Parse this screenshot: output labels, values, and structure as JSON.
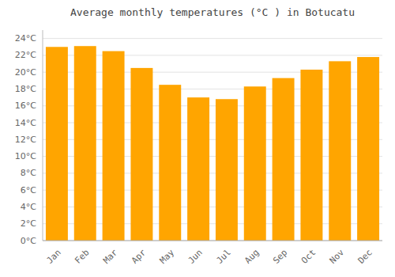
{
  "chart_data": {
    "type": "bar",
    "title": "Average monthly temperatures (°C ) in Botucatu",
    "categories": [
      "Jan",
      "Feb",
      "Mar",
      "Apr",
      "May",
      "Jun",
      "Jul",
      "Aug",
      "Sep",
      "Oct",
      "Nov",
      "Dec"
    ],
    "values": [
      23.0,
      23.1,
      22.5,
      20.5,
      18.5,
      17.0,
      16.8,
      18.3,
      19.3,
      20.3,
      21.3,
      21.8
    ],
    "color": "#FFA500",
    "ylim": [
      0,
      25
    ],
    "yticks": [
      {
        "value": 0,
        "label": "0°C"
      },
      {
        "value": 2,
        "label": "2°C"
      },
      {
        "value": 4,
        "label": "4°C"
      },
      {
        "value": 6,
        "label": "6°C"
      },
      {
        "value": 8,
        "label": "8°C"
      },
      {
        "value": 10,
        "label": "10°C"
      },
      {
        "value": 12,
        "label": "12°C"
      },
      {
        "value": 14,
        "label": "14°C"
      },
      {
        "value": 16,
        "label": "16°C"
      },
      {
        "value": 18,
        "label": "18°C"
      },
      {
        "value": 20,
        "label": "20°C"
      },
      {
        "value": 22,
        "label": "22°C"
      },
      {
        "value": 24,
        "label": "24°C"
      }
    ],
    "grid": true
  }
}
